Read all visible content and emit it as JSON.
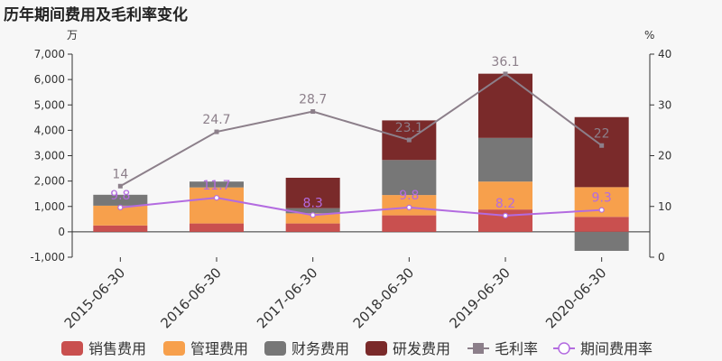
{
  "title": "历年期间费用及毛利率变化",
  "chart_data": {
    "type": "bar",
    "stacked": true,
    "title": "历年期间费用及毛利率变化",
    "categories": [
      "2015-06-30",
      "2016-06-30",
      "2017-06-30",
      "2018-06-30",
      "2019-06-30",
      "2020-06-30"
    ],
    "left_axis": {
      "unit": "万",
      "ylim": [
        -1000,
        7000
      ],
      "ticks": [
        "-1,000",
        "0",
        "1,000",
        "2,000",
        "3,000",
        "4,000",
        "5,000",
        "6,000",
        "7,000"
      ],
      "tick_values": [
        -1000,
        0,
        1000,
        2000,
        3000,
        4000,
        5000,
        6000,
        7000
      ]
    },
    "right_axis": {
      "unit": "%",
      "ylim": [
        0,
        40
      ],
      "ticks": [
        "0",
        "10",
        "20",
        "30",
        "40"
      ],
      "tick_values": [
        0,
        10,
        20,
        30,
        40
      ]
    },
    "series": [
      {
        "name": "销售费用",
        "kind": "bar",
        "color": "#c9504f",
        "values": [
          250,
          330,
          330,
          650,
          880,
          590
        ]
      },
      {
        "name": "管理费用",
        "kind": "bar",
        "color": "#f7a04c",
        "values": [
          780,
          1420,
          400,
          800,
          1100,
          1170
        ]
      },
      {
        "name": "财务费用",
        "kind": "bar",
        "color": "#777777",
        "values": [
          430,
          230,
          200,
          1380,
          1720,
          -750
        ]
      },
      {
        "name": "研发费用",
        "kind": "bar",
        "color": "#7a2a2a",
        "values": [
          0,
          0,
          1200,
          1560,
          2530,
          2760
        ]
      },
      {
        "name": "毛利率",
        "kind": "line",
        "axis": "right",
        "color": "#8c7f8a",
        "values": [
          14,
          24.7,
          28.7,
          23.1,
          36.1,
          22
        ],
        "labels": [
          "14",
          "24.7",
          "28.7",
          "23.1",
          "36.1",
          "22"
        ]
      },
      {
        "name": "期间费用率",
        "kind": "line",
        "axis": "right",
        "color": "#b36be0",
        "values": [
          9.8,
          11.7,
          8.3,
          9.8,
          8.2,
          9.3
        ],
        "labels": [
          "9.8",
          "11.7",
          "8.3",
          "9.8",
          "8.2",
          "9.3"
        ]
      }
    ],
    "legend_position": "bottom",
    "grid": false
  }
}
